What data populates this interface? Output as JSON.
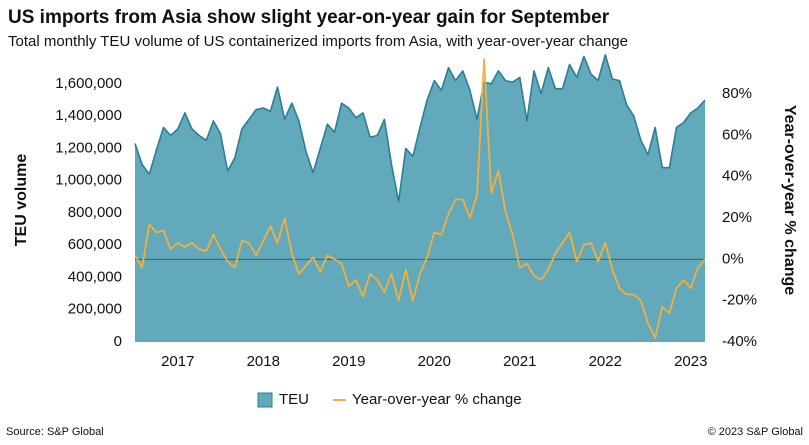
{
  "chart_data": {
    "type": "area-line",
    "title": "US imports from Asia show slight year-on-year gain for September",
    "subtitle": "Total monthly TEU volume of US containerized imports from Asia, with year-over-year change",
    "y_label": "TEU volume",
    "y2_label": "Year-over-year % change",
    "source": "Source: S&P Global",
    "copyright": "© 2023 S&P Global",
    "categories": [
      null,
      null,
      null,
      null,
      null,
      null,
      "2017",
      null,
      null,
      null,
      null,
      null,
      null,
      null,
      null,
      null,
      null,
      null,
      "2018",
      null,
      null,
      null,
      null,
      null,
      null,
      null,
      null,
      null,
      null,
      null,
      "2019",
      null,
      null,
      null,
      null,
      null,
      null,
      null,
      null,
      null,
      null,
      null,
      "2020",
      null,
      null,
      null,
      null,
      null,
      null,
      null,
      null,
      null,
      null,
      null,
      "2021",
      null,
      null,
      null,
      null,
      null,
      null,
      null,
      null,
      null,
      null,
      null,
      "2022",
      null,
      null,
      null,
      null,
      null,
      null,
      null,
      null,
      null,
      null,
      null,
      "2023",
      null,
      null
    ],
    "series": [
      {
        "name": "TEU",
        "color": "#62a9bb",
        "line_color": "#2b7f95",
        "values": [
          1230000,
          1100000,
          1040000,
          1190000,
          1330000,
          1280000,
          1320000,
          1420000,
          1320000,
          1280000,
          1250000,
          1370000,
          1290000,
          1060000,
          1140000,
          1320000,
          1380000,
          1440000,
          1450000,
          1430000,
          1580000,
          1380000,
          1480000,
          1370000,
          1180000,
          1050000,
          1200000,
          1350000,
          1300000,
          1480000,
          1450000,
          1390000,
          1420000,
          1270000,
          1280000,
          1380000,
          1100000,
          870000,
          1200000,
          1150000,
          1330000,
          1500000,
          1620000,
          1560000,
          1700000,
          1620000,
          1680000,
          1560000,
          1380000,
          1610000,
          1600000,
          1680000,
          1620000,
          1610000,
          1640000,
          1370000,
          1680000,
          1540000,
          1700000,
          1570000,
          1570000,
          1720000,
          1640000,
          1770000,
          1660000,
          1620000,
          1780000,
          1630000,
          1620000,
          1470000,
          1400000,
          1250000,
          1160000,
          1330000,
          1080000,
          1080000,
          1330000,
          1360000,
          1420000,
          1450000,
          1500000
        ]
      },
      {
        "name": "Year-over-year % change",
        "color": "#f2b13e",
        "axis": "y2",
        "values": [
          2,
          -4,
          17,
          13,
          14,
          5,
          8,
          6,
          8,
          5,
          4,
          12,
          5,
          -1,
          -4,
          9,
          8,
          2,
          9,
          16,
          8,
          20,
          3,
          -7,
          -3,
          1,
          -6,
          2,
          0,
          -2,
          -13,
          -10,
          -18,
          -7,
          -10,
          -16,
          -7,
          -20,
          -5,
          -20,
          -7,
          1,
          13,
          12,
          22,
          29,
          29,
          20,
          31,
          97,
          32,
          43,
          23,
          12,
          -4,
          -2,
          -8,
          -10,
          -5,
          3,
          8,
          13,
          -1,
          7,
          8,
          -1,
          8,
          -5,
          -14,
          -17,
          -17,
          -20,
          -31,
          -38,
          -23,
          -26,
          -14,
          -10,
          -14,
          -4,
          0
        ]
      }
    ],
    "ylim": [
      0,
      1760000
    ],
    "yticks": [
      0,
      {
        "value": 200000,
        "label": "200,000"
      },
      {
        "value": 400000,
        "label": "400,000"
      },
      {
        "value": 600000,
        "label": "600,000"
      },
      {
        "value": 800000,
        "label": "800,000"
      },
      {
        "value": 1000000,
        "label": "1,000,000"
      },
      {
        "value": 1200000,
        "label": "1,200,000"
      },
      {
        "value": 1400000,
        "label": "1,400,000"
      },
      {
        "value": 1600000,
        "label": "1,600,000"
      }
    ],
    "y2lim": [
      -40,
      97.5
    ],
    "y2ticks": [
      {
        "value": -40,
        "label": "-40%"
      },
      {
        "value": -20,
        "label": "-20%"
      },
      {
        "value": 0,
        "label": "0%"
      },
      {
        "value": 20,
        "label": "20%"
      },
      {
        "value": 40,
        "label": "40%"
      },
      {
        "value": 60,
        "label": "60%"
      },
      {
        "value": 80,
        "label": "80%"
      }
    ],
    "negative_tick_color": "#e0201c",
    "zero_line": true,
    "legend": "bottom"
  }
}
